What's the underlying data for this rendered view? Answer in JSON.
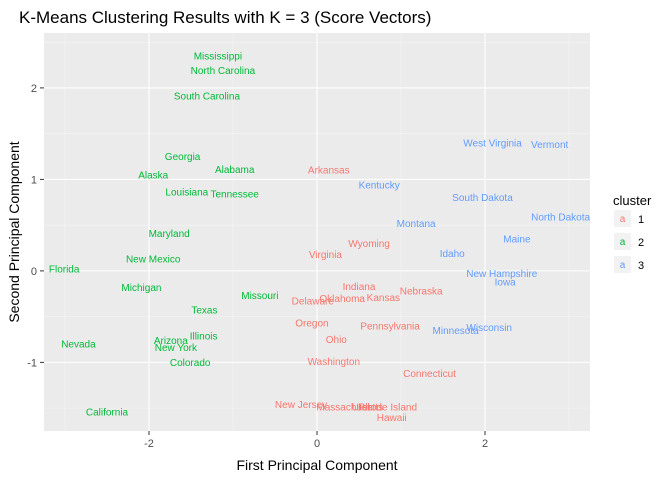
{
  "chart_data": {
    "type": "scatter",
    "title": "K-Means Clustering Results with K = 3 (Score Vectors)",
    "xlabel": "First Principal Component",
    "ylabel": "Second Principal Component",
    "xlim": [
      -3.25,
      3.25
    ],
    "ylim": [
      -1.75,
      2.6
    ],
    "x_ticks": [
      -2,
      0,
      2
    ],
    "y_ticks": [
      -1,
      0,
      1,
      2
    ],
    "grid": true,
    "legend": {
      "title": "cluster",
      "position": "right",
      "key_glyph": "a",
      "entries": [
        {
          "label": "1",
          "color": "#F8766D"
        },
        {
          "label": "2",
          "color": "#00BA38"
        },
        {
          "label": "3",
          "color": "#619CFF"
        }
      ]
    },
    "points": [
      {
        "label": "Mississippi",
        "x": -1.18,
        "y": 2.35,
        "cluster": "2"
      },
      {
        "label": "North Carolina",
        "x": -1.12,
        "y": 2.19,
        "cluster": "2"
      },
      {
        "label": "South Carolina",
        "x": -1.31,
        "y": 1.91,
        "cluster": "2"
      },
      {
        "label": "Georgia",
        "x": -1.6,
        "y": 1.25,
        "cluster": "2"
      },
      {
        "label": "Alabama",
        "x": -0.98,
        "y": 1.11,
        "cluster": "2"
      },
      {
        "label": "Alaska",
        "x": -1.95,
        "y": 1.05,
        "cluster": "2"
      },
      {
        "label": "Louisiana",
        "x": -1.55,
        "y": 0.86,
        "cluster": "2"
      },
      {
        "label": "Tennessee",
        "x": -0.98,
        "y": 0.84,
        "cluster": "2"
      },
      {
        "label": "Maryland",
        "x": -1.76,
        "y": 0.41,
        "cluster": "2"
      },
      {
        "label": "New Mexico",
        "x": -1.95,
        "y": 0.13,
        "cluster": "2"
      },
      {
        "label": "Florida",
        "x": -3.01,
        "y": 0.02,
        "cluster": "2"
      },
      {
        "label": "Michigan",
        "x": -2.09,
        "y": -0.18,
        "cluster": "2"
      },
      {
        "label": "Missouri",
        "x": -0.68,
        "y": -0.27,
        "cluster": "2"
      },
      {
        "label": "Texas",
        "x": -1.34,
        "y": -0.43,
        "cluster": "2"
      },
      {
        "label": "Illinois",
        "x": -1.35,
        "y": -0.71,
        "cluster": "2"
      },
      {
        "label": "Arizona",
        "x": -1.74,
        "y": -0.76,
        "cluster": "2"
      },
      {
        "label": "Nevada",
        "x": -2.84,
        "y": -0.8,
        "cluster": "2"
      },
      {
        "label": "New York",
        "x": -1.68,
        "y": -0.84,
        "cluster": "2"
      },
      {
        "label": "Colorado",
        "x": -1.51,
        "y": -1.0,
        "cluster": "2"
      },
      {
        "label": "California",
        "x": -2.5,
        "y": -1.54,
        "cluster": "2"
      },
      {
        "label": "Arkansas",
        "x": 0.14,
        "y": 1.1,
        "cluster": "1"
      },
      {
        "label": "Wyoming",
        "x": 0.62,
        "y": 0.3,
        "cluster": "1"
      },
      {
        "label": "Virginia",
        "x": 0.1,
        "y": 0.18,
        "cluster": "1"
      },
      {
        "label": "Indiana",
        "x": 0.5,
        "y": -0.17,
        "cluster": "1"
      },
      {
        "label": "Nebraska",
        "x": 1.24,
        "y": -0.22,
        "cluster": "1"
      },
      {
        "label": "Oklahoma",
        "x": 0.3,
        "y": -0.3,
        "cluster": "1"
      },
      {
        "label": "Kansas",
        "x": 0.79,
        "y": -0.29,
        "cluster": "1"
      },
      {
        "label": "Delaware",
        "x": -0.05,
        "y": -0.33,
        "cluster": "1"
      },
      {
        "label": "Oregon",
        "x": -0.06,
        "y": -0.57,
        "cluster": "1"
      },
      {
        "label": "Pennsylvania",
        "x": 0.87,
        "y": -0.6,
        "cluster": "1"
      },
      {
        "label": "Ohio",
        "x": 0.23,
        "y": -0.75,
        "cluster": "1"
      },
      {
        "label": "Washington",
        "x": 0.2,
        "y": -0.99,
        "cluster": "1"
      },
      {
        "label": "Connecticut",
        "x": 1.34,
        "y": -1.12,
        "cluster": "1"
      },
      {
        "label": "New Jersey",
        "x": -0.19,
        "y": -1.46,
        "cluster": "1"
      },
      {
        "label": "Massachusetts",
        "x": 0.39,
        "y": -1.49,
        "cluster": "1"
      },
      {
        "label": "Rhode Island",
        "x": 0.84,
        "y": -1.49,
        "cluster": "1"
      },
      {
        "label": "Utah",
        "x": 0.54,
        "y": -1.49,
        "cluster": "1"
      },
      {
        "label": "Hawaii",
        "x": 0.89,
        "y": -1.6,
        "cluster": "1"
      },
      {
        "label": "West Virginia",
        "x": 2.09,
        "y": 1.4,
        "cluster": "3"
      },
      {
        "label": "Vermont",
        "x": 2.77,
        "y": 1.38,
        "cluster": "3"
      },
      {
        "label": "Kentucky",
        "x": 0.74,
        "y": 0.94,
        "cluster": "3"
      },
      {
        "label": "South Dakota",
        "x": 1.97,
        "y": 0.8,
        "cluster": "3"
      },
      {
        "label": "North Dakota",
        "x": 2.9,
        "y": 0.59,
        "cluster": "3"
      },
      {
        "label": "Montana",
        "x": 1.18,
        "y": 0.52,
        "cluster": "3"
      },
      {
        "label": "Maine",
        "x": 2.38,
        "y": 0.35,
        "cluster": "3"
      },
      {
        "label": "Idaho",
        "x": 1.61,
        "y": 0.19,
        "cluster": "3"
      },
      {
        "label": "New Hampshire",
        "x": 2.2,
        "y": -0.03,
        "cluster": "3"
      },
      {
        "label": "Iowa",
        "x": 2.24,
        "y": -0.12,
        "cluster": "3"
      },
      {
        "label": "Wisconsin",
        "x": 2.05,
        "y": -0.62,
        "cluster": "3"
      },
      {
        "label": "Minnesota",
        "x": 1.65,
        "y": -0.65,
        "cluster": "3"
      }
    ]
  }
}
